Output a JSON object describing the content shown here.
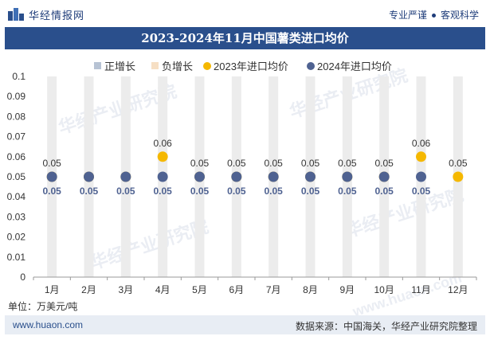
{
  "header": {
    "brand": "华经情报网",
    "slogan_left": "专业严谨",
    "slogan_right": "客观科学"
  },
  "title": "2023-2024年11月中国薯类进口均价",
  "unit": "单位：万美元/吨",
  "footer": {
    "url": "www.huaon.com",
    "source": "数据来源：中国海关，华经产业研究院整理"
  },
  "watermarks": [
    "华经产业研究院",
    "华经产业研究院",
    "华经产业研究院",
    "华经产业研究院",
    "www.huaon.com"
  ],
  "colors": {
    "title_bg": "#2a4f8c",
    "pos_growth": "#b7c3d4",
    "neg_growth": "#f6dfc4",
    "series_2023": "#f5b800",
    "series_2024": "#4f6291",
    "bar_bg": "#ececec"
  },
  "chart_data": {
    "type": "scatter",
    "categories": [
      "1月",
      "2月",
      "3月",
      "4月",
      "5月",
      "6月",
      "7月",
      "8月",
      "9月",
      "10月",
      "11月",
      "12月"
    ],
    "ylim": [
      0,
      0.1
    ],
    "yticks": [
      "0",
      "0.01",
      "0.02",
      "0.03",
      "0.04",
      "0.05",
      "0.06",
      "0.07",
      "0.08",
      "0.09",
      "0.1"
    ],
    "legend": [
      "正增长",
      "负增长",
      "2023年进口均价",
      "2024年进口均价"
    ],
    "legend_position": "top",
    "series": [
      {
        "name": "2023年进口均价",
        "values": [
          0.05,
          0.05,
          0.05,
          0.06,
          0.05,
          0.05,
          0.05,
          0.05,
          0.05,
          0.05,
          0.06,
          0.05
        ],
        "labels": [
          "0.05",
          "",
          "",
          "0.06",
          "0.05",
          "0.05",
          "0.05",
          "0.05",
          "0.05",
          "0.05",
          "0.06",
          "0.05"
        ]
      },
      {
        "name": "2024年进口均价",
        "values": [
          0.05,
          0.05,
          0.05,
          0.05,
          0.05,
          0.05,
          0.05,
          0.05,
          0.05,
          0.05,
          0.05,
          null
        ],
        "labels": [
          "0.05",
          "0.05",
          "0.05",
          "0.05",
          "0.05",
          "0.05",
          "0.05",
          "0.05",
          "0.05",
          "0.05",
          "0.05",
          ""
        ]
      }
    ],
    "growth": [
      "",
      "",
      "",
      "",
      "",
      "",
      "",
      "",
      "",
      "",
      "",
      ""
    ]
  }
}
